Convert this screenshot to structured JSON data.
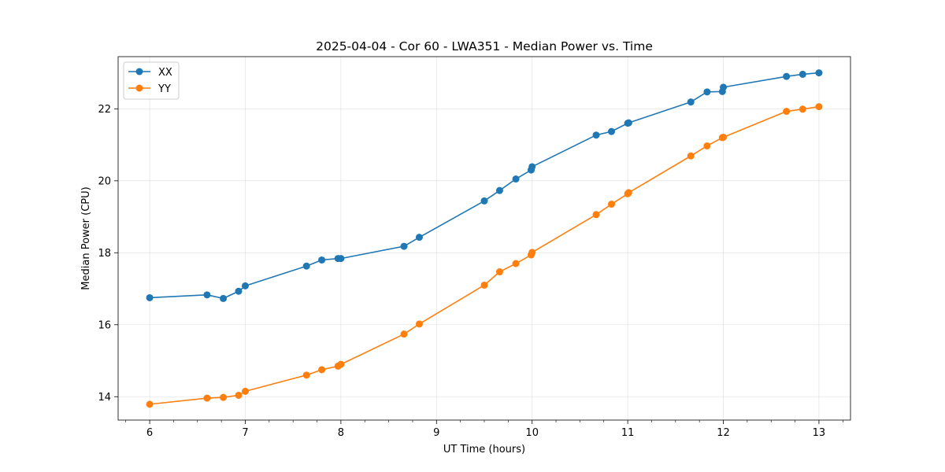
{
  "chart_data": {
    "type": "line",
    "title": "2025-04-04 - Cor 60 - LWA351 - Median Power vs. Time",
    "xlabel": "UT Time (hours)",
    "ylabel": "Median Power (CPU)",
    "xlim": [
      5.67,
      13.33
    ],
    "ylim": [
      13.35,
      23.45
    ],
    "xticks": [
      6,
      7,
      8,
      9,
      10,
      11,
      12,
      13
    ],
    "xtick_labels": [
      "6",
      "7",
      "8",
      "9",
      "10",
      "11",
      "12",
      "13"
    ],
    "yticks": [
      14,
      16,
      18,
      20,
      22
    ],
    "ytick_labels": [
      "14",
      "16",
      "18",
      "20",
      "22"
    ],
    "grid": true,
    "legend_position": "upper-left",
    "series": [
      {
        "name": "XX",
        "color": "#1f77b4",
        "x": [
          6.0,
          6.6,
          6.77,
          6.93,
          7.0,
          7.64,
          7.8,
          7.97,
          8.0,
          8.66,
          8.82,
          9.5,
          9.66,
          9.83,
          9.99,
          10.0,
          10.67,
          10.83,
          11.0,
          11.01,
          11.66,
          11.83,
          11.99,
          12.0,
          12.66,
          12.83,
          13.0
        ],
        "y": [
          16.75,
          16.83,
          16.73,
          16.93,
          17.08,
          17.63,
          17.8,
          17.84,
          17.84,
          18.18,
          18.43,
          19.44,
          19.73,
          20.05,
          20.3,
          20.39,
          21.27,
          21.37,
          21.6,
          21.61,
          22.19,
          22.47,
          22.48,
          22.6,
          22.9,
          22.96,
          23.0
        ]
      },
      {
        "name": "YY",
        "color": "#ff7f0e",
        "x": [
          6.0,
          6.6,
          6.77,
          6.93,
          7.0,
          7.64,
          7.8,
          7.97,
          8.0,
          8.66,
          8.82,
          9.5,
          9.66,
          9.83,
          9.99,
          10.0,
          10.67,
          10.83,
          11.0,
          11.01,
          11.66,
          11.83,
          11.99,
          12.0,
          12.66,
          12.83,
          13.0
        ],
        "y": [
          13.79,
          13.96,
          13.98,
          14.04,
          14.15,
          14.6,
          14.75,
          14.85,
          14.9,
          15.74,
          16.02,
          17.1,
          17.47,
          17.7,
          17.94,
          18.01,
          19.06,
          19.35,
          19.64,
          19.67,
          20.69,
          20.97,
          21.2,
          21.21,
          21.93,
          21.99,
          22.06
        ]
      }
    ]
  }
}
